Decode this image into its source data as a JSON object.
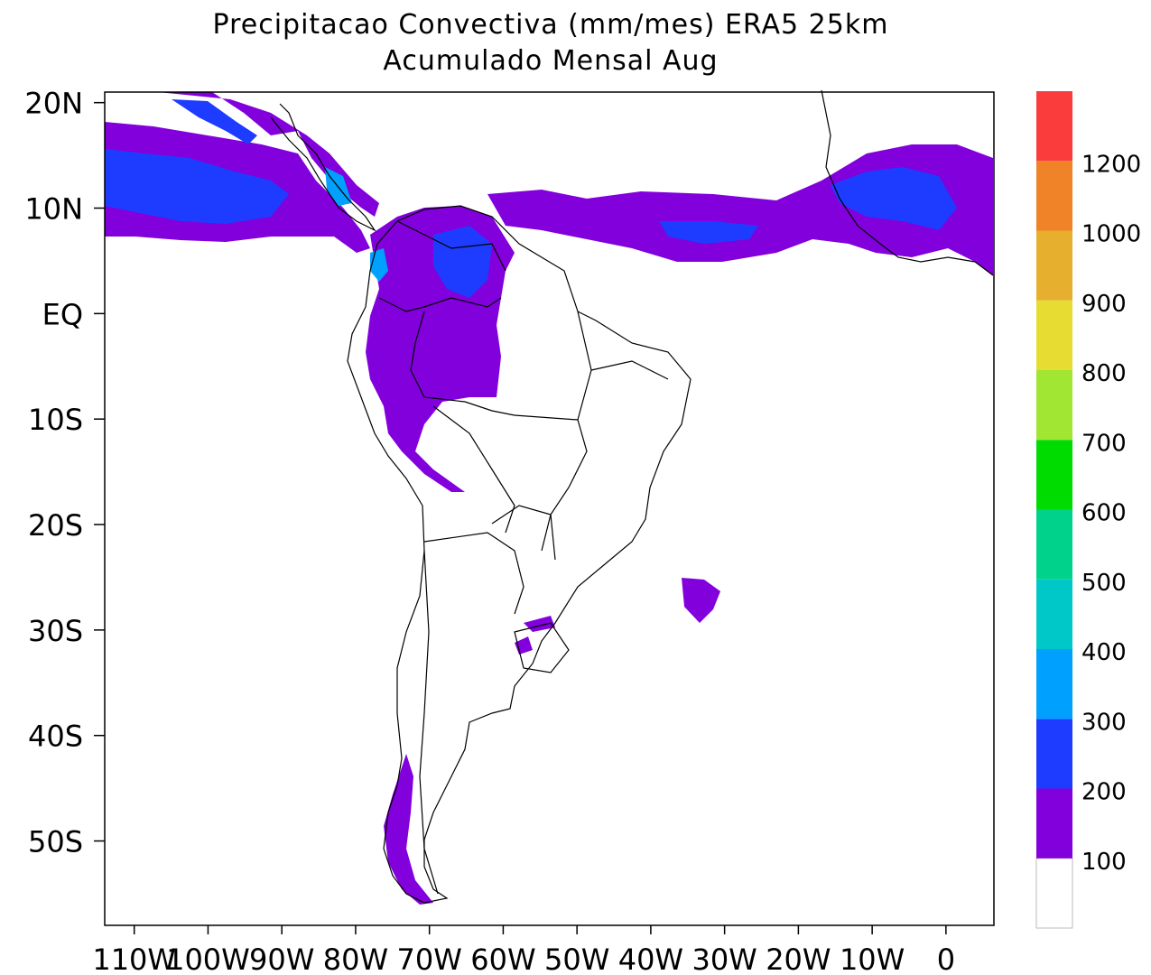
{
  "title_line1": "Precipitacao Convectiva (mm/mes) ERA5  25km",
  "title_line2": "Acumulado Mensal Aug",
  "axes": {
    "lon_ticks": [
      {
        "value": -110,
        "label": "110W"
      },
      {
        "value": -100,
        "label": "100W"
      },
      {
        "value": -90,
        "label": "90W"
      },
      {
        "value": -80,
        "label": "80W"
      },
      {
        "value": -70,
        "label": "70W"
      },
      {
        "value": -60,
        "label": "60W"
      },
      {
        "value": -50,
        "label": "50W"
      },
      {
        "value": -40,
        "label": "40W"
      },
      {
        "value": -30,
        "label": "30W"
      },
      {
        "value": -20,
        "label": "20W"
      },
      {
        "value": -10,
        "label": "10W"
      },
      {
        "value": 0,
        "label": "0"
      }
    ],
    "lat_ticks": [
      {
        "value": 20,
        "label": "20N"
      },
      {
        "value": 10,
        "label": "10N"
      },
      {
        "value": 0,
        "label": "EQ"
      },
      {
        "value": -10,
        "label": "10S"
      },
      {
        "value": -20,
        "label": "20S"
      },
      {
        "value": -30,
        "label": "30S"
      },
      {
        "value": -40,
        "label": "40S"
      },
      {
        "value": -50,
        "label": "50S"
      }
    ],
    "lon_range": [
      -114,
      6.5
    ],
    "lat_range": [
      -58,
      21
    ]
  },
  "colorbar": {
    "levels": [
      {
        "label": "100",
        "color": "#8200dc"
      },
      {
        "label": "200",
        "color": "#1e3cff"
      },
      {
        "label": "300",
        "color": "#00a0ff"
      },
      {
        "label": "400",
        "color": "#00c8c8"
      },
      {
        "label": "500",
        "color": "#00d28c"
      },
      {
        "label": "600",
        "color": "#00dc00"
      },
      {
        "label": "700",
        "color": "#a0e632"
      },
      {
        "label": "800",
        "color": "#e6dc32"
      },
      {
        "label": "900",
        "color": "#e6af2d"
      },
      {
        "label": "1000",
        "color": "#f08228"
      },
      {
        "label": "1200",
        "color": "#fa3c3c"
      }
    ],
    "lowest_color": "#ffffff"
  }
}
